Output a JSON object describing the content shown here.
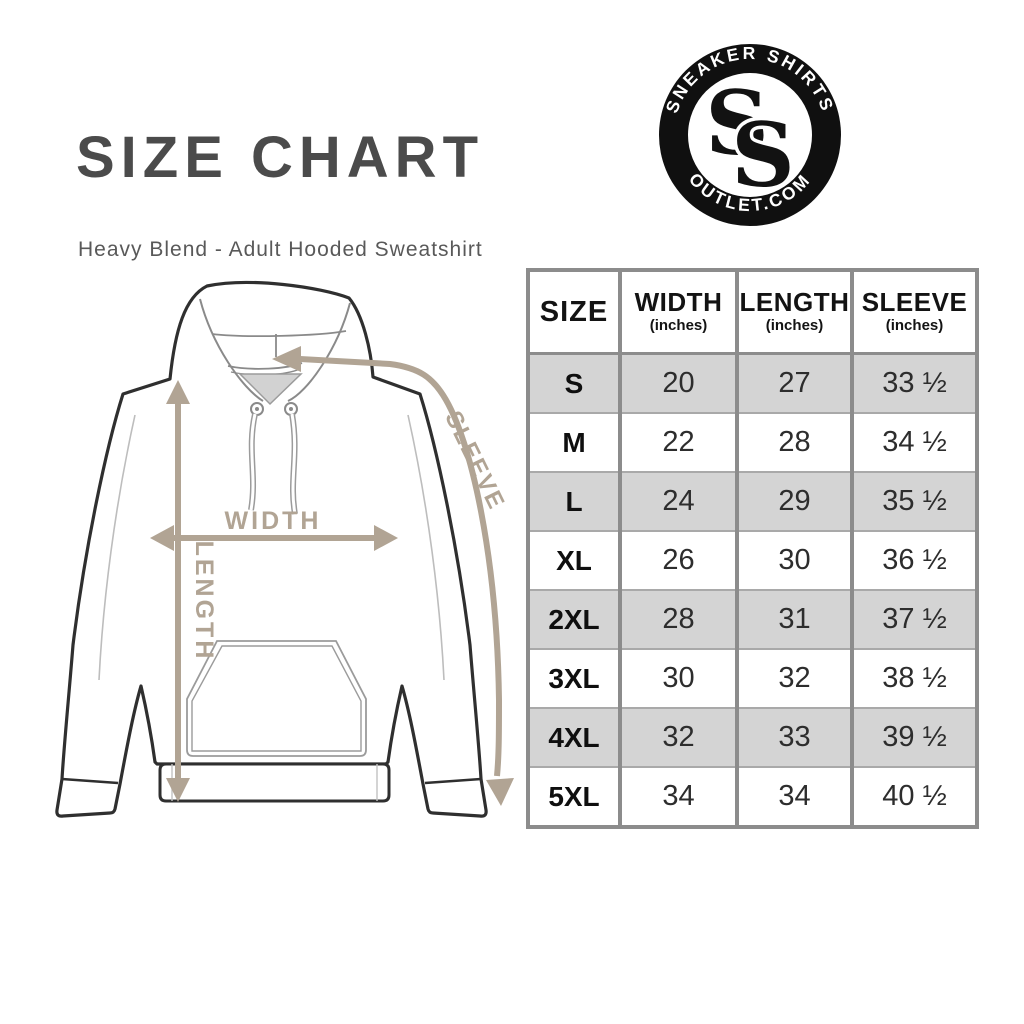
{
  "header": {
    "title": "SIZE CHART",
    "subtitle": "Heavy Blend - Adult Hooded Sweatshirt"
  },
  "logo": {
    "arc_top": "SNEAKER SHIRTS",
    "arc_bottom": "OUTLET.COM",
    "monogram_letters": [
      "S",
      "S"
    ]
  },
  "diagram": {
    "width_label": "WIDTH",
    "length_label": "LENGTH",
    "sleeve_label": "SLEEVE"
  },
  "size_table": {
    "columns": [
      {
        "label": "SIZE",
        "sub": ""
      },
      {
        "label": "WIDTH",
        "sub": "(inches)"
      },
      {
        "label": "LENGTH",
        "sub": "(inches)"
      },
      {
        "label": "SLEEVE",
        "sub": "(inches)"
      }
    ],
    "rows": [
      {
        "size": "S",
        "width": "20",
        "length": "27",
        "sleeve": "33 ½"
      },
      {
        "size": "M",
        "width": "22",
        "length": "28",
        "sleeve": "34 ½"
      },
      {
        "size": "L",
        "width": "24",
        "length": "29",
        "sleeve": "35 ½"
      },
      {
        "size": "XL",
        "width": "26",
        "length": "30",
        "sleeve": "36 ½"
      },
      {
        "size": "2XL",
        "width": "28",
        "length": "31",
        "sleeve": "37 ½"
      },
      {
        "size": "3XL",
        "width": "30",
        "length": "32",
        "sleeve": "38 ½"
      },
      {
        "size": "4XL",
        "width": "32",
        "length": "33",
        "sleeve": "39 ½"
      },
      {
        "size": "5XL",
        "width": "34",
        "length": "34",
        "sleeve": "40 ½"
      }
    ]
  },
  "chart_data": {
    "type": "table",
    "title": "SIZE CHART",
    "subtitle": "Heavy Blend - Adult Hooded Sweatshirt",
    "columns": [
      "SIZE",
      "WIDTH (inches)",
      "LENGTH (inches)",
      "SLEEVE (inches)"
    ],
    "rows": [
      [
        "S",
        20,
        27,
        33.5
      ],
      [
        "M",
        22,
        28,
        34.5
      ],
      [
        "L",
        24,
        29,
        35.5
      ],
      [
        "XL",
        26,
        30,
        36.5
      ],
      [
        "2XL",
        28,
        31,
        37.5
      ],
      [
        "3XL",
        30,
        32,
        38.5
      ],
      [
        "4XL",
        32,
        33,
        39.5
      ],
      [
        "5XL",
        34,
        34,
        40.5
      ]
    ]
  },
  "colors": {
    "accent_tan": "#b1a494",
    "row_shade": "#d4d4d4",
    "table_border": "#8c8c8c",
    "title_gray": "#4b4b4b",
    "outline_dark": "#2f2f2f",
    "detail_gray": "#9b9b9b"
  }
}
